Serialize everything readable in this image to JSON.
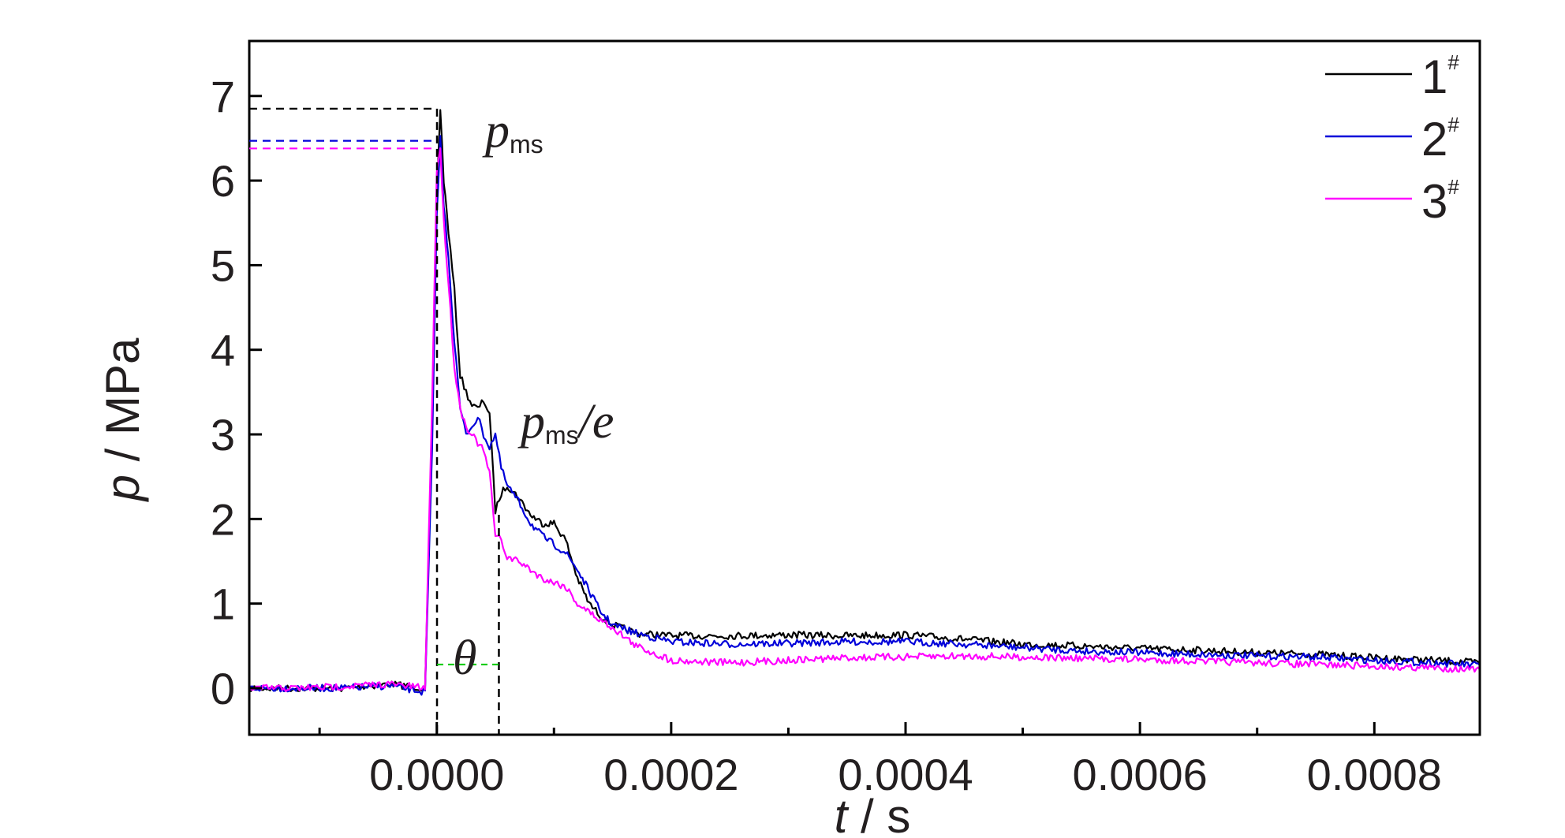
{
  "chart_data": {
    "type": "line",
    "xlabel": "t / s",
    "xlabel_var": "t",
    "xlabel_unit": " / s",
    "ylabel": "p / MPa",
    "ylabel_var": "p",
    "ylabel_unit": " / MPa",
    "xlim": [
      -0.00016,
      0.00089
    ],
    "ylim": [
      -0.55,
      7.65
    ],
    "x_ticks": [
      {
        "value": 0.0,
        "label": "0.0000"
      },
      {
        "value": 0.0002,
        "label": "0.0002"
      },
      {
        "value": 0.0004,
        "label": "0.0004"
      },
      {
        "value": 0.0006,
        "label": "0.0006"
      },
      {
        "value": 0.0008,
        "label": "0.0008"
      }
    ],
    "x_minor_ticks": [
      -0.0001,
      0.0001,
      0.0003,
      0.0005,
      0.0007
    ],
    "y_ticks": [
      {
        "value": 0,
        "label": "0"
      },
      {
        "value": 1,
        "label": "1"
      },
      {
        "value": 2,
        "label": "2"
      },
      {
        "value": 3,
        "label": "3"
      },
      {
        "value": 4,
        "label": "4"
      },
      {
        "value": 5,
        "label": "5"
      },
      {
        "value": 6,
        "label": "6"
      },
      {
        "value": 7,
        "label": "7"
      }
    ],
    "grid": false,
    "legend_position": "top-right",
    "series": [
      {
        "name": "1",
        "name_sup": "#",
        "color": "#000000",
        "x": [
          -0.00016,
          -0.00012,
          -8e-05,
          -4e-05,
          -1e-05,
          -4e-06,
          0.0,
          3e-06,
          6e-06,
          1e-05,
          1.5e-05,
          2e-05,
          2.5e-05,
          3e-05,
          3.5e-05,
          4e-05,
          4.5e-05,
          5e-05,
          5.5e-05,
          6e-05,
          7e-05,
          8e-05,
          9e-05,
          0.0001,
          0.00011,
          0.00012,
          0.00013,
          0.00014,
          0.00015,
          0.00017,
          0.0002,
          0.00025,
          0.0003,
          0.00035,
          0.0004,
          0.00045,
          0.0005,
          0.00055,
          0.0006,
          0.00065,
          0.0007,
          0.00075,
          0.0008,
          0.00085,
          0.00089
        ],
        "y": [
          0.0,
          0.0,
          0.0,
          0.05,
          0.0,
          3.0,
          5.8,
          6.85,
          6.0,
          5.4,
          4.7,
          3.7,
          3.5,
          3.35,
          3.3,
          3.4,
          3.25,
          2.1,
          2.3,
          2.4,
          2.25,
          2.05,
          1.95,
          1.95,
          1.75,
          1.3,
          1.0,
          0.85,
          0.75,
          0.65,
          0.62,
          0.62,
          0.63,
          0.62,
          0.63,
          0.58,
          0.52,
          0.5,
          0.47,
          0.45,
          0.42,
          0.4,
          0.36,
          0.33,
          0.3
        ]
      },
      {
        "name": "2",
        "name_sup": "#",
        "color": "#0000d9",
        "x": [
          -0.00016,
          -0.00012,
          -8e-05,
          -4e-05,
          -1e-05,
          -4e-06,
          0.0,
          3e-06,
          6e-06,
          1e-05,
          1.5e-05,
          2e-05,
          2.5e-05,
          3e-05,
          3.5e-05,
          4e-05,
          4.5e-05,
          5e-05,
          5.5e-05,
          6e-05,
          7e-05,
          8e-05,
          9e-05,
          0.0001,
          0.00011,
          0.00012,
          0.00013,
          0.00014,
          0.00015,
          0.00017,
          0.0002,
          0.00025,
          0.0003,
          0.00035,
          0.0004,
          0.00045,
          0.0005,
          0.00055,
          0.0006,
          0.00065,
          0.0007,
          0.00075,
          0.0008,
          0.00085,
          0.00089
        ],
        "y": [
          0.0,
          0.0,
          0.0,
          0.03,
          -0.05,
          2.8,
          5.6,
          6.5,
          5.7,
          5.1,
          4.1,
          3.3,
          3.0,
          3.1,
          3.2,
          3.0,
          2.85,
          3.0,
          2.6,
          2.4,
          2.2,
          1.95,
          1.8,
          1.7,
          1.6,
          1.4,
          1.15,
          0.9,
          0.75,
          0.65,
          0.55,
          0.52,
          0.53,
          0.55,
          0.55,
          0.52,
          0.48,
          0.44,
          0.42,
          0.4,
          0.38,
          0.37,
          0.33,
          0.3,
          0.27
        ]
      },
      {
        "name": "3",
        "name_sup": "#",
        "color": "#ff00ff",
        "x": [
          -0.00016,
          -0.00012,
          -8e-05,
          -4e-05,
          -1e-05,
          -4e-06,
          0.0,
          3e-06,
          6e-06,
          1e-05,
          1.5e-05,
          2e-05,
          2.5e-05,
          3e-05,
          3.5e-05,
          4e-05,
          4.5e-05,
          5e-05,
          5.5e-05,
          6e-05,
          7e-05,
          8e-05,
          9e-05,
          0.0001,
          0.00011,
          0.00012,
          0.00013,
          0.00014,
          0.00015,
          0.00017,
          0.0002,
          0.00025,
          0.0003,
          0.00035,
          0.0004,
          0.00045,
          0.0005,
          0.00055,
          0.0006,
          0.00065,
          0.0007,
          0.00075,
          0.0008,
          0.00085,
          0.00089
        ],
        "y": [
          0.0,
          0.0,
          0.02,
          0.05,
          0.0,
          3.4,
          6.1,
          6.4,
          5.5,
          4.8,
          3.8,
          3.3,
          3.1,
          3.0,
          2.9,
          2.8,
          2.55,
          1.8,
          1.75,
          1.55,
          1.5,
          1.4,
          1.3,
          1.25,
          1.2,
          1.0,
          0.9,
          0.8,
          0.72,
          0.5,
          0.33,
          0.3,
          0.33,
          0.36,
          0.37,
          0.38,
          0.37,
          0.35,
          0.34,
          0.32,
          0.3,
          0.28,
          0.26,
          0.24,
          0.22
        ]
      }
    ],
    "annotations": {
      "pms_label": "p",
      "pms_sub": "ms",
      "pms_e_label": "p",
      "pms_e_sub": "ms",
      "pms_e_tail": "/e",
      "theta_label": "θ",
      "peak_levels": [
        {
          "value": 6.85,
          "color": "#000000"
        },
        {
          "value": 6.47,
          "color": "#0000d9"
        },
        {
          "value": 6.38,
          "color": "#ff00ff"
        }
      ],
      "theta_level": 0.28,
      "theta_color": "#00cc00",
      "vertical_markers": [
        2e-07,
        5.3e-05
      ]
    }
  }
}
